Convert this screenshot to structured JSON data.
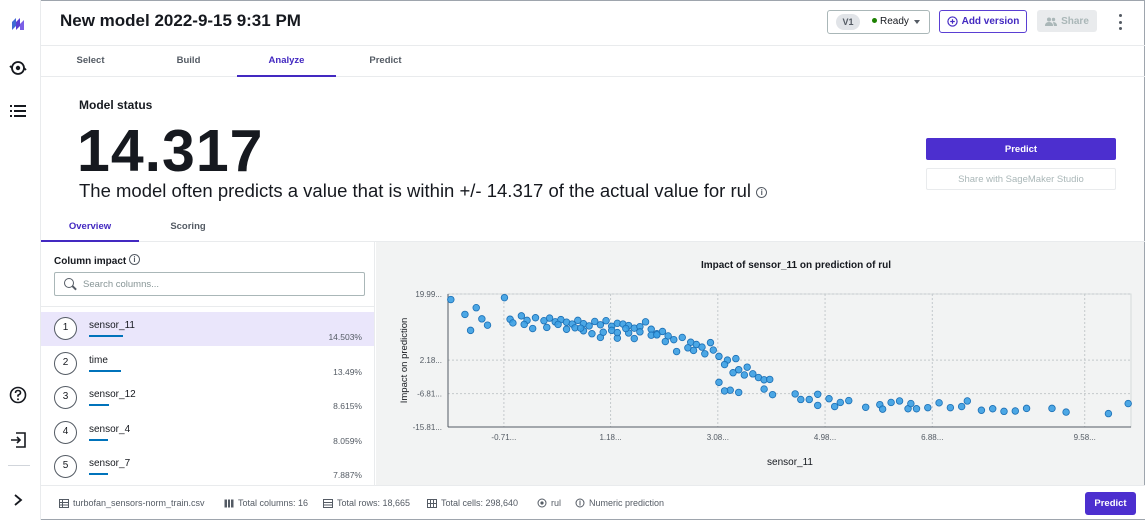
{
  "header": {
    "title": "New model 2022-9-15 9:31 PM",
    "version_badge": "V1",
    "version_status": "Ready",
    "add_version_label": "Add version",
    "share_label": "Share"
  },
  "rail": {
    "icons": [
      "canvas-logo-icon",
      "models-icon",
      "list-icon",
      "help-icon",
      "sign-out-icon",
      "expand-icon"
    ]
  },
  "tabs": [
    {
      "label": "Select",
      "active": false
    },
    {
      "label": "Build",
      "active": false
    },
    {
      "label": "Analyze",
      "active": true
    },
    {
      "label": "Predict",
      "active": false
    }
  ],
  "model_status": {
    "label": "Model status",
    "value": "14.317",
    "description": "The model often predicts a value that is within +/- 14.317 of the actual value for rul"
  },
  "actions": {
    "predict_label": "Predict",
    "share_studio_label": "Share with SageMaker Studio"
  },
  "subtabs": [
    {
      "label": "Overview",
      "active": true
    },
    {
      "label": "Scoring",
      "active": false
    }
  ],
  "column_impact": {
    "label": "Column impact",
    "search_placeholder": "Search columns...",
    "columns": [
      {
        "rank": "1",
        "name": "sensor_11",
        "pct": "14.503%",
        "fraction": 0.145,
        "selected": true
      },
      {
        "rank": "2",
        "name": "time",
        "pct": "13.49%",
        "fraction": 0.135,
        "selected": false
      },
      {
        "rank": "3",
        "name": "sensor_12",
        "pct": "8.615%",
        "fraction": 0.086,
        "selected": false
      },
      {
        "rank": "4",
        "name": "sensor_4",
        "pct": "8.059%",
        "fraction": 0.081,
        "selected": false
      },
      {
        "rank": "5",
        "name": "sensor_7",
        "pct": "7.887%",
        "fraction": 0.079,
        "selected": false
      }
    ]
  },
  "chart_data": {
    "type": "scatter",
    "title": "Impact of sensor_11 on prediction of rul",
    "xlabel": "sensor_11",
    "ylabel": "Impact on prediction",
    "x_ticks": [
      "-0.71...",
      "1.18...",
      "3.08...",
      "4.98...",
      "6.88...",
      "9.58..."
    ],
    "x_tick_values": [
      -0.71,
      1.18,
      3.08,
      4.98,
      6.88,
      9.58
    ],
    "y_ticks": [
      "19.99...",
      "2.18...",
      "-6.81...",
      "-15.81..."
    ],
    "y_tick_values": [
      19.99,
      2.18,
      -6.81,
      -15.81
    ],
    "xlim": [
      -1.7,
      10.4
    ],
    "ylim": [
      -15.81,
      19.99
    ],
    "grid": true,
    "color": "#3a9ee3",
    "points": [
      [
        -1.65,
        18.5
      ],
      [
        -1.2,
        16.3
      ],
      [
        -0.7,
        19.0
      ],
      [
        -1.4,
        14.5
      ],
      [
        -1.1,
        13.3
      ],
      [
        -1.3,
        10.2
      ],
      [
        -1.0,
        11.6
      ],
      [
        -0.6,
        13.2
      ],
      [
        -0.4,
        14.1
      ],
      [
        -0.3,
        12.9
      ],
      [
        -0.15,
        13.6
      ],
      [
        0.0,
        12.8
      ],
      [
        0.1,
        13.5
      ],
      [
        0.2,
        12.5
      ],
      [
        0.3,
        13.1
      ],
      [
        0.4,
        12.4
      ],
      [
        0.5,
        11.9
      ],
      [
        0.6,
        12.9
      ],
      [
        0.7,
        12.0
      ],
      [
        0.8,
        11.4
      ],
      [
        0.9,
        12.6
      ],
      [
        1.0,
        11.7
      ],
      [
        1.1,
        12.8
      ],
      [
        1.2,
        11.3
      ],
      [
        1.3,
        12.1
      ],
      [
        1.4,
        11.9
      ],
      [
        1.5,
        11.5
      ],
      [
        1.6,
        10.8
      ],
      [
        1.7,
        11.2
      ],
      [
        1.8,
        12.5
      ],
      [
        1.9,
        10.5
      ],
      [
        2.0,
        9.3
      ],
      [
        2.1,
        9.9
      ],
      [
        1.5,
        9.5
      ],
      [
        1.7,
        9.8
      ],
      [
        1.9,
        8.9
      ],
      [
        2.0,
        9.0
      ],
      [
        2.2,
        8.7
      ],
      [
        1.6,
        8.0
      ],
      [
        1.3,
        8.1
      ],
      [
        1.0,
        8.3
      ],
      [
        0.7,
        10.1
      ],
      [
        0.4,
        10.5
      ],
      [
        -0.2,
        10.7
      ],
      [
        0.05,
        11.0
      ],
      [
        0.55,
        10.9
      ],
      [
        1.2,
        10.2
      ],
      [
        1.45,
        10.7
      ],
      [
        1.05,
        9.7
      ],
      [
        0.85,
        9.3
      ],
      [
        -0.35,
        11.8
      ],
      [
        -0.55,
        12.2
      ],
      [
        0.25,
        11.8
      ],
      [
        0.65,
        10.8
      ],
      [
        1.3,
        9.6
      ],
      [
        2.15,
        7.2
      ],
      [
        2.3,
        7.7
      ],
      [
        2.45,
        8.3
      ],
      [
        2.6,
        7.0
      ],
      [
        2.7,
        6.4
      ],
      [
        2.8,
        5.7
      ],
      [
        2.95,
        6.9
      ],
      [
        2.55,
        5.5
      ],
      [
        2.35,
        4.5
      ],
      [
        2.65,
        4.8
      ],
      [
        2.85,
        3.9
      ],
      [
        3.0,
        4.9
      ],
      [
        3.1,
        3.2
      ],
      [
        3.25,
        2.2
      ],
      [
        3.4,
        2.6
      ],
      [
        3.2,
        1.0
      ],
      [
        3.35,
        -1.2
      ],
      [
        3.55,
        -1.8
      ],
      [
        3.7,
        -1.5
      ],
      [
        3.8,
        -2.5
      ],
      [
        3.9,
        -3.1
      ],
      [
        4.0,
        -3.0
      ],
      [
        3.6,
        0.3
      ],
      [
        3.45,
        -0.4
      ],
      [
        3.1,
        -3.8
      ],
      [
        3.3,
        -5.9
      ],
      [
        3.9,
        -5.6
      ],
      [
        4.05,
        -7.1
      ],
      [
        3.45,
        -6.5
      ],
      [
        3.2,
        -6.1
      ],
      [
        4.45,
        -6.9
      ],
      [
        4.55,
        -8.4
      ],
      [
        4.7,
        -8.4
      ],
      [
        4.85,
        -7.0
      ],
      [
        5.05,
        -8.2
      ],
      [
        5.25,
        -9.2
      ],
      [
        5.4,
        -8.7
      ],
      [
        5.7,
        -10.5
      ],
      [
        5.95,
        -9.8
      ],
      [
        6.15,
        -9.2
      ],
      [
        6.3,
        -8.8
      ],
      [
        6.45,
        -10.9
      ],
      [
        6.6,
        -10.9
      ],
      [
        6.8,
        -10.6
      ],
      [
        7.0,
        -9.3
      ],
      [
        7.2,
        -10.6
      ],
      [
        7.4,
        -10.3
      ],
      [
        7.5,
        -8.8
      ],
      [
        7.75,
        -11.3
      ],
      [
        7.95,
        -10.9
      ],
      [
        8.15,
        -11.6
      ],
      [
        8.35,
        -11.5
      ],
      [
        8.55,
        -10.8
      ],
      [
        9.0,
        -10.8
      ],
      [
        9.25,
        -11.8
      ],
      [
        10.0,
        -12.2
      ],
      [
        10.35,
        -9.5
      ],
      [
        4.85,
        -10.0
      ],
      [
        5.15,
        -10.3
      ],
      [
        6.0,
        -11.0
      ],
      [
        6.5,
        -9.5
      ]
    ]
  },
  "footer": {
    "file": "turbofan_sensors-norm_train.csv",
    "total_columns": "Total columns: 16",
    "total_rows": "Total rows: 18,665",
    "total_cells": "Total cells: 298,640",
    "target": "rul",
    "model_type": "Numeric prediction",
    "predict_label": "Predict"
  }
}
